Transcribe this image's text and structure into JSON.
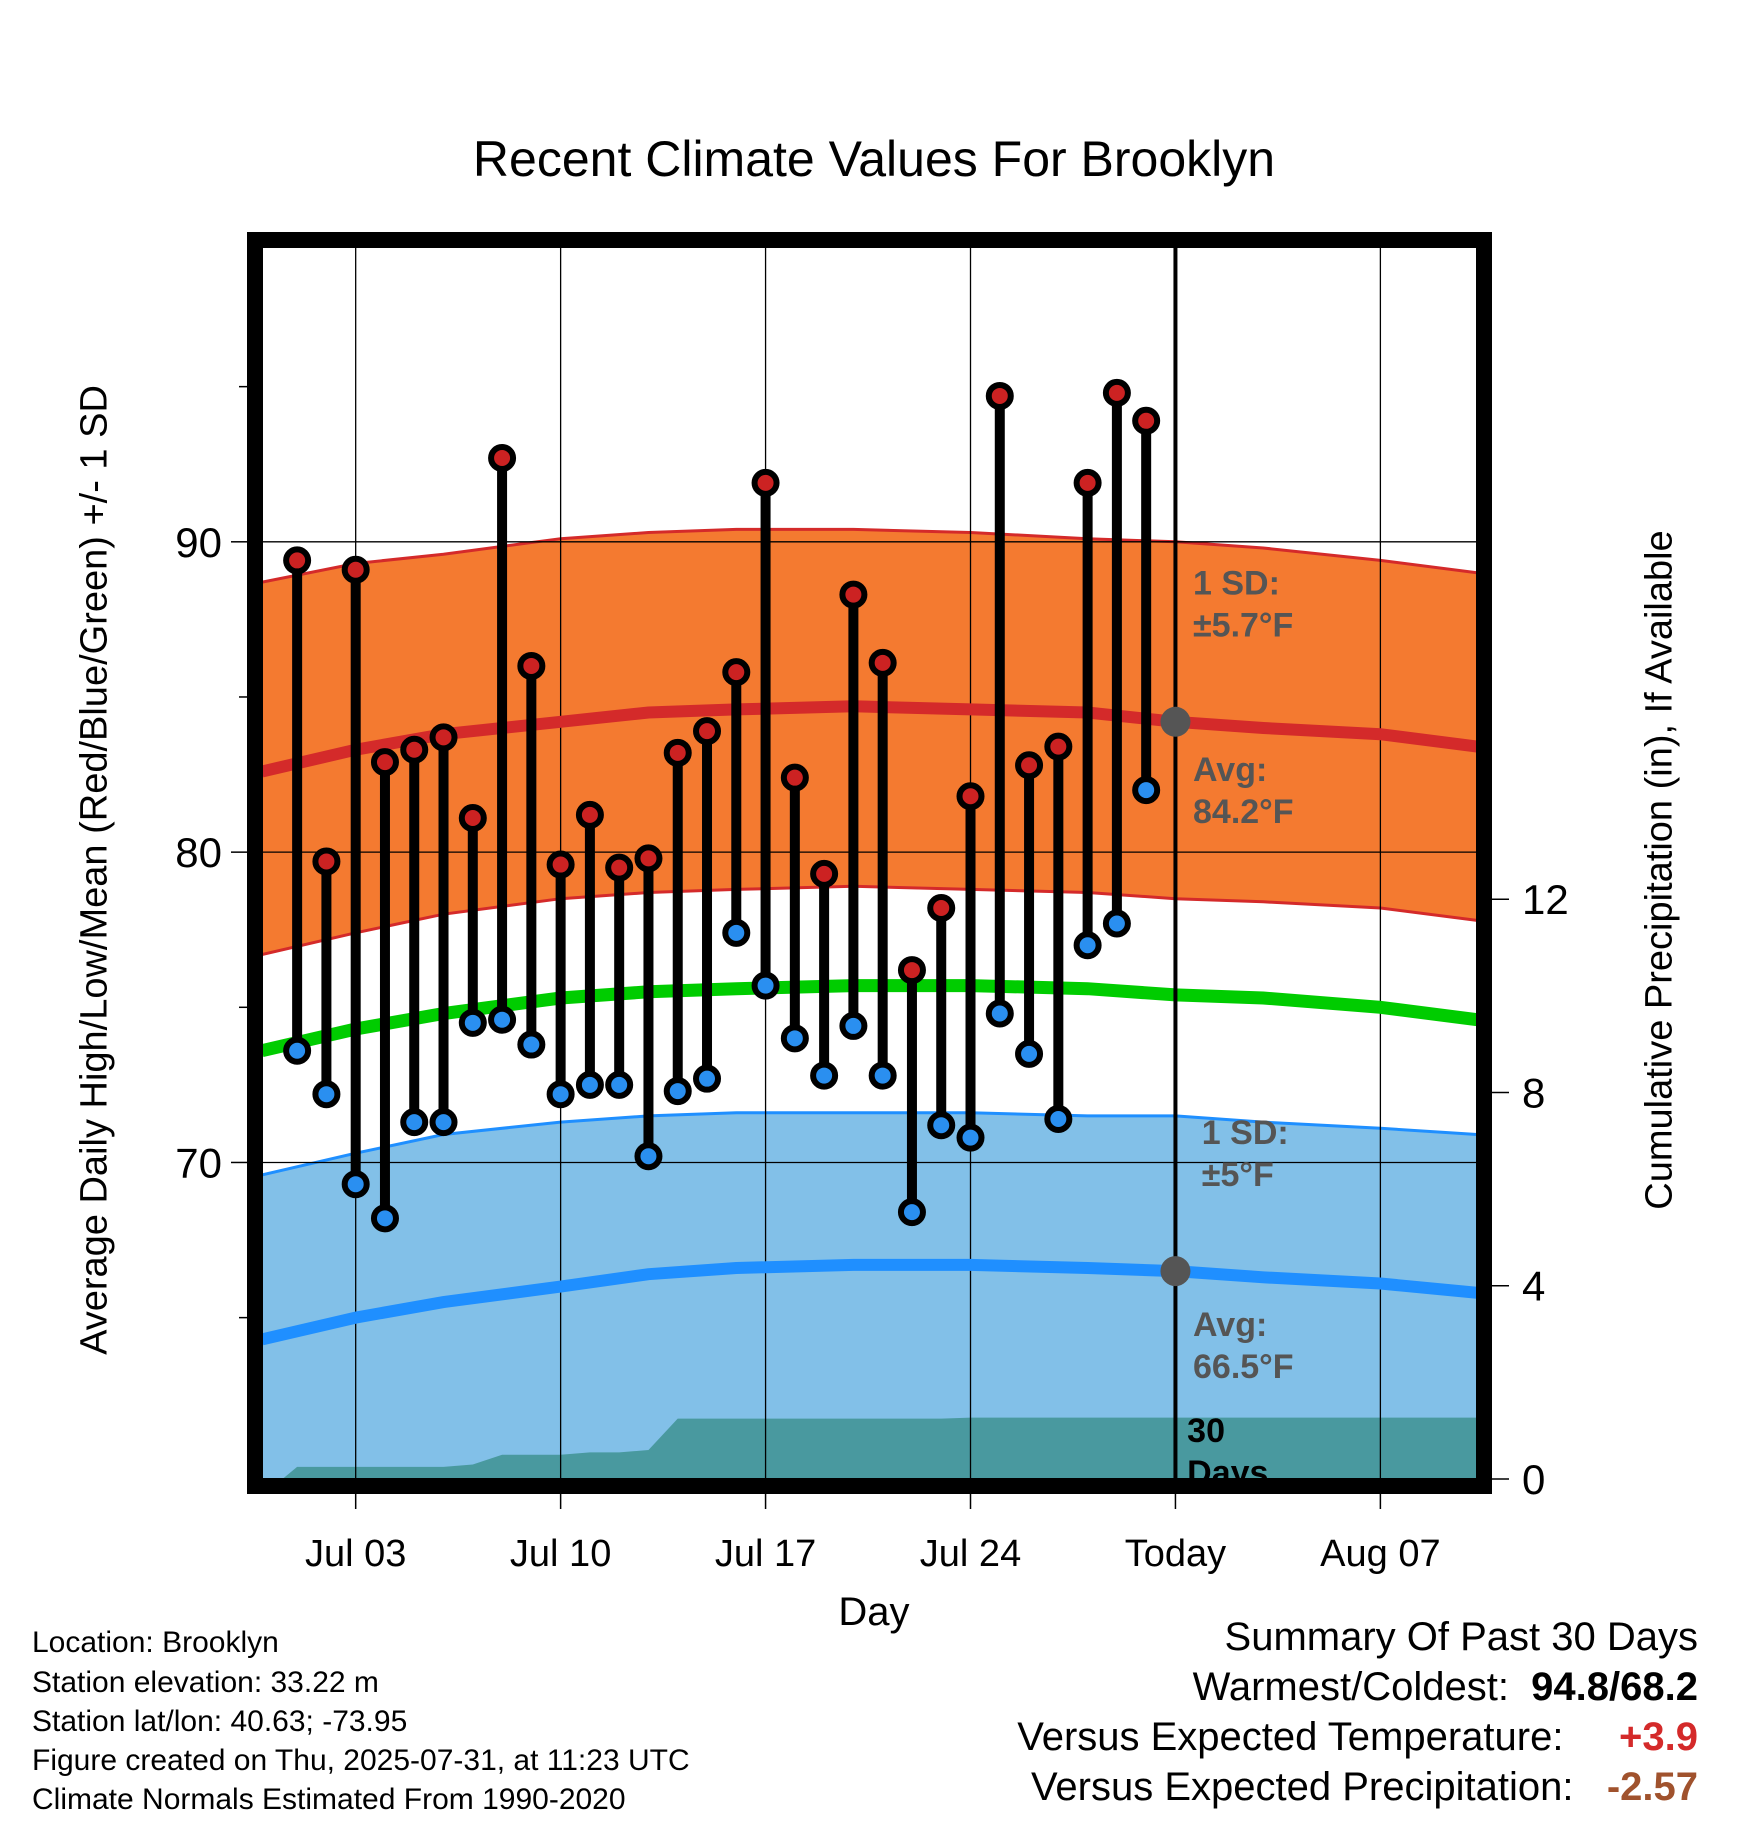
{
  "chart_data": {
    "type": "line",
    "title": "Recent Climate Values For Brooklyn",
    "xlabel": "Day",
    "ylabel": "Average Daily High/Low/Mean (Red/Blue/Green) +/- 1 SD",
    "ylabel_right": "Cumulative Precipitation (in), If Available",
    "x_ticks": [
      "Jul 03",
      "Jul 10",
      "Jul 17",
      "Jul 24",
      "Today",
      "Aug 07"
    ],
    "x_tick_days": [
      3,
      10,
      17,
      24,
      31,
      38
    ],
    "xlim": [
      -0.2,
      41.3
    ],
    "y_ticks": [
      70,
      80,
      90
    ],
    "ylim": [
      59.8,
      99.5
    ],
    "y2_ticks": [
      0,
      4,
      8,
      12
    ],
    "y2lim": [
      0,
      25.5
    ],
    "grid": true,
    "today_day": 31,
    "days": [
      1,
      2,
      3,
      4,
      5,
      6,
      7,
      8,
      9,
      10,
      11,
      12,
      13,
      14,
      15,
      16,
      17,
      18,
      19,
      20,
      21,
      22,
      23,
      24,
      25,
      26,
      27,
      28,
      29,
      30
    ],
    "series": [
      {
        "name": "Observed High",
        "color": "#cc2222",
        "values": [
          89.4,
          79.7,
          89.1,
          82.9,
          83.3,
          83.7,
          81.1,
          92.7,
          86.0,
          79.6,
          81.2,
          79.5,
          79.8,
          83.2,
          83.9,
          85.8,
          91.9,
          82.4,
          79.3,
          88.3,
          86.1,
          76.2,
          78.2,
          81.8,
          94.7,
          82.8,
          83.4,
          91.9,
          94.8,
          93.9
        ]
      },
      {
        "name": "Observed Low",
        "color": "#2a8ff0",
        "values": [
          73.6,
          72.2,
          69.3,
          68.2,
          71.3,
          71.3,
          74.5,
          74.6,
          73.8,
          72.2,
          72.5,
          72.5,
          70.2,
          72.3,
          72.7,
          77.4,
          75.7,
          74.0,
          72.8,
          74.4,
          72.8,
          68.4,
          71.2,
          70.8,
          74.8,
          73.5,
          71.4,
          77.0,
          77.7,
          82.0
        ]
      },
      {
        "name": "Normal High",
        "color": "#cc2222",
        "x": [
          -0.2,
          3,
          6,
          10,
          13,
          16,
          20,
          24,
          28,
          31,
          34,
          38,
          41.3
        ],
        "values": [
          82.6,
          83.3,
          83.8,
          84.2,
          84.5,
          84.6,
          84.7,
          84.6,
          84.5,
          84.2,
          84.0,
          83.8,
          83.4
        ]
      },
      {
        "name": "Normal High +1 SD",
        "color": "#cc2222",
        "x": [
          -0.2,
          3,
          6,
          10,
          13,
          16,
          20,
          24,
          28,
          31,
          34,
          38,
          41.3
        ],
        "values": [
          88.7,
          89.3,
          89.6,
          90.1,
          90.3,
          90.4,
          90.4,
          90.3,
          90.1,
          90.0,
          89.8,
          89.4,
          89.0
        ]
      },
      {
        "name": "Normal High -1 SD",
        "color": "#cc2222",
        "x": [
          -0.2,
          3,
          6,
          10,
          13,
          16,
          20,
          24,
          28,
          31,
          34,
          38,
          41.3
        ],
        "values": [
          76.7,
          77.4,
          78.0,
          78.5,
          78.7,
          78.8,
          78.9,
          78.8,
          78.7,
          78.5,
          78.4,
          78.2,
          77.8
        ]
      },
      {
        "name": "Normal Mean",
        "color": "#00cc00",
        "x": [
          -0.2,
          3,
          6,
          10,
          13,
          16,
          20,
          24,
          28,
          31,
          34,
          38,
          41.3
        ],
        "values": [
          73.6,
          74.3,
          74.8,
          75.3,
          75.5,
          75.6,
          75.7,
          75.7,
          75.6,
          75.4,
          75.3,
          75.0,
          74.6
        ]
      },
      {
        "name": "Normal Low",
        "color": "#1f8fff",
        "x": [
          -0.2,
          3,
          6,
          10,
          13,
          16,
          20,
          24,
          28,
          31,
          34,
          38,
          41.3
        ],
        "values": [
          64.3,
          65.0,
          65.5,
          66.0,
          66.4,
          66.6,
          66.7,
          66.7,
          66.6,
          66.5,
          66.3,
          66.1,
          65.8
        ]
      },
      {
        "name": "Normal Low +1 SD",
        "color": "#1f8fff",
        "x": [
          -0.2,
          3,
          6,
          10,
          13,
          16,
          20,
          24,
          28,
          31,
          34,
          38,
          41.3
        ],
        "values": [
          69.6,
          70.3,
          70.9,
          71.3,
          71.5,
          71.6,
          71.6,
          71.6,
          71.5,
          71.5,
          71.3,
          71.1,
          70.9
        ]
      },
      {
        "name": "Normal Low -1 SD",
        "color": "#1f8fff",
        "x": [
          -0.2,
          3,
          6,
          10,
          13,
          16,
          20,
          24,
          28,
          31,
          34,
          38,
          41.3
        ],
        "values": [
          59.8,
          59.8,
          59.8,
          59.8,
          59.8,
          59.8,
          59.8,
          59.8,
          59.8,
          59.8,
          59.8,
          59.8,
          59.8
        ]
      },
      {
        "name": "Cumulative Precipitation (in)",
        "color": "#49999f",
        "axis": "right",
        "x": [
          -0.2,
          0.5,
          1,
          2,
          3,
          4,
          5,
          6,
          7,
          8,
          9,
          10,
          11,
          12,
          13,
          14,
          15,
          16,
          17,
          18,
          19,
          20,
          21,
          22,
          23,
          24,
          25,
          26,
          27,
          28,
          29,
          30,
          31,
          38,
          41.3
        ],
        "values": [
          0,
          0,
          0.25,
          0.25,
          0.25,
          0.25,
          0.25,
          0.25,
          0.3,
          0.5,
          0.5,
          0.5,
          0.55,
          0.55,
          0.6,
          1.25,
          1.25,
          1.25,
          1.25,
          1.25,
          1.25,
          1.25,
          1.25,
          1.25,
          1.25,
          1.27,
          1.27,
          1.27,
          1.27,
          1.27,
          1.27,
          1.27,
          1.27,
          1.27,
          1.27
        ]
      }
    ],
    "annotations": [
      {
        "text1": "1 SD:",
        "text2": "±5.7°F",
        "at": [
          31.6,
          88.3
        ]
      },
      {
        "text1": "Avg:",
        "text2": "84.2°F",
        "at": [
          31.6,
          82.3
        ]
      },
      {
        "text1": "1 SD:",
        "text2": "±5°F",
        "at": [
          31.9,
          70.6
        ]
      },
      {
        "text1": "Avg:",
        "text2": "66.5°F",
        "at": [
          31.6,
          64.4
        ]
      },
      {
        "text1": "30",
        "text2": "Days",
        "at": [
          31.4,
          61.0
        ]
      }
    ],
    "today_markers": [
      {
        "y": 84.2
      },
      {
        "y": 66.5
      }
    ]
  },
  "footer": {
    "location": "Location: Brooklyn",
    "elevation": "Station elevation: 33.22 m",
    "latlon": "Station lat/lon: 40.63; -73.95",
    "created": "Figure created on Thu, 2025-07-31, at 11:23 UTC",
    "normals": "Climate Normals Estimated From 1990-2020"
  },
  "summary": {
    "title": "Summary Of Past 30 Days",
    "warm_cold_label": "Warmest/Coldest:",
    "warm_cold_value": "94.8/68.2",
    "temp_label": "Versus Expected Temperature:",
    "temp_value": "+3.9",
    "temp_color": "#d42a2a",
    "precip_label": "Versus Expected Precipitation:",
    "precip_value": "-2.57",
    "precip_color": "#a0522d"
  }
}
